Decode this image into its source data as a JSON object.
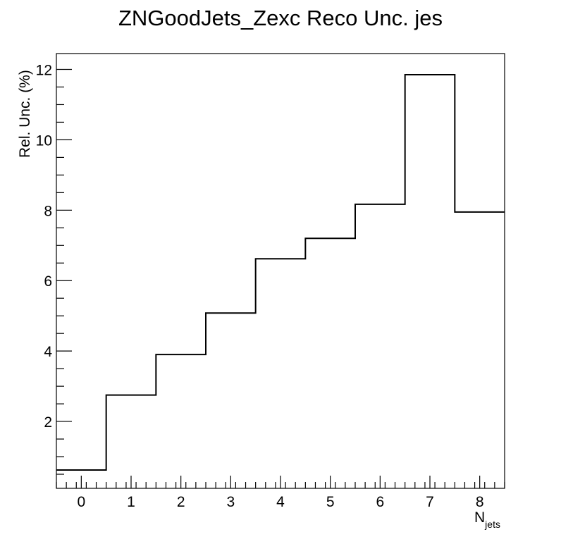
{
  "chart_data": {
    "type": "step",
    "title": "ZNGoodJets_Zexc Reco Unc. jes",
    "xlabel": "N",
    "xlabel_subscript": "jets",
    "ylabel": "Rel. Unc. (%)",
    "bin_edges": [
      -0.5,
      0.5,
      1.5,
      2.5,
      3.5,
      4.5,
      5.5,
      6.5,
      7.5,
      8.5
    ],
    "values": [
      0.62,
      2.75,
      3.9,
      5.08,
      6.62,
      7.2,
      8.17,
      11.85,
      7.95
    ],
    "xlim": [
      -0.5,
      8.5
    ],
    "ylim": [
      0.1,
      12.45
    ],
    "x_ticks": [
      0,
      1,
      2,
      3,
      4,
      5,
      6,
      7,
      8
    ],
    "x_tick_labels": [
      "0",
      "1",
      "2",
      "3",
      "4",
      "5",
      "6",
      "7",
      "8"
    ],
    "y_ticks": [
      2,
      4,
      6,
      8,
      10,
      12
    ],
    "y_tick_labels": [
      "2",
      "4",
      "6",
      "8",
      "10",
      "12"
    ],
    "y_minor_step": 0.5,
    "x_minor_step": 0.2,
    "grid": false,
    "legend": "none",
    "line_color": "#000000"
  }
}
